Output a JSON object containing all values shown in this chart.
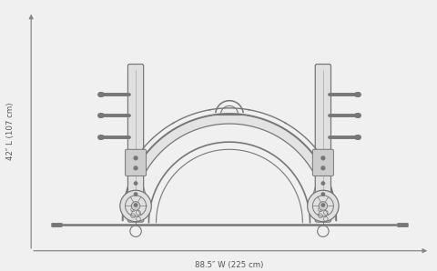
{
  "bg_color": "#f0f0f0",
  "line_color": "#aaaaaa",
  "dark_line": "#777777",
  "med_line": "#999999",
  "axis_color": "#888888",
  "text_color": "#555555",
  "fill_light": "#e0e0e0",
  "fill_med": "#cccccc",
  "width_label": "88.5″ W (225 cm)",
  "height_label": "42″ L (107 cm)"
}
